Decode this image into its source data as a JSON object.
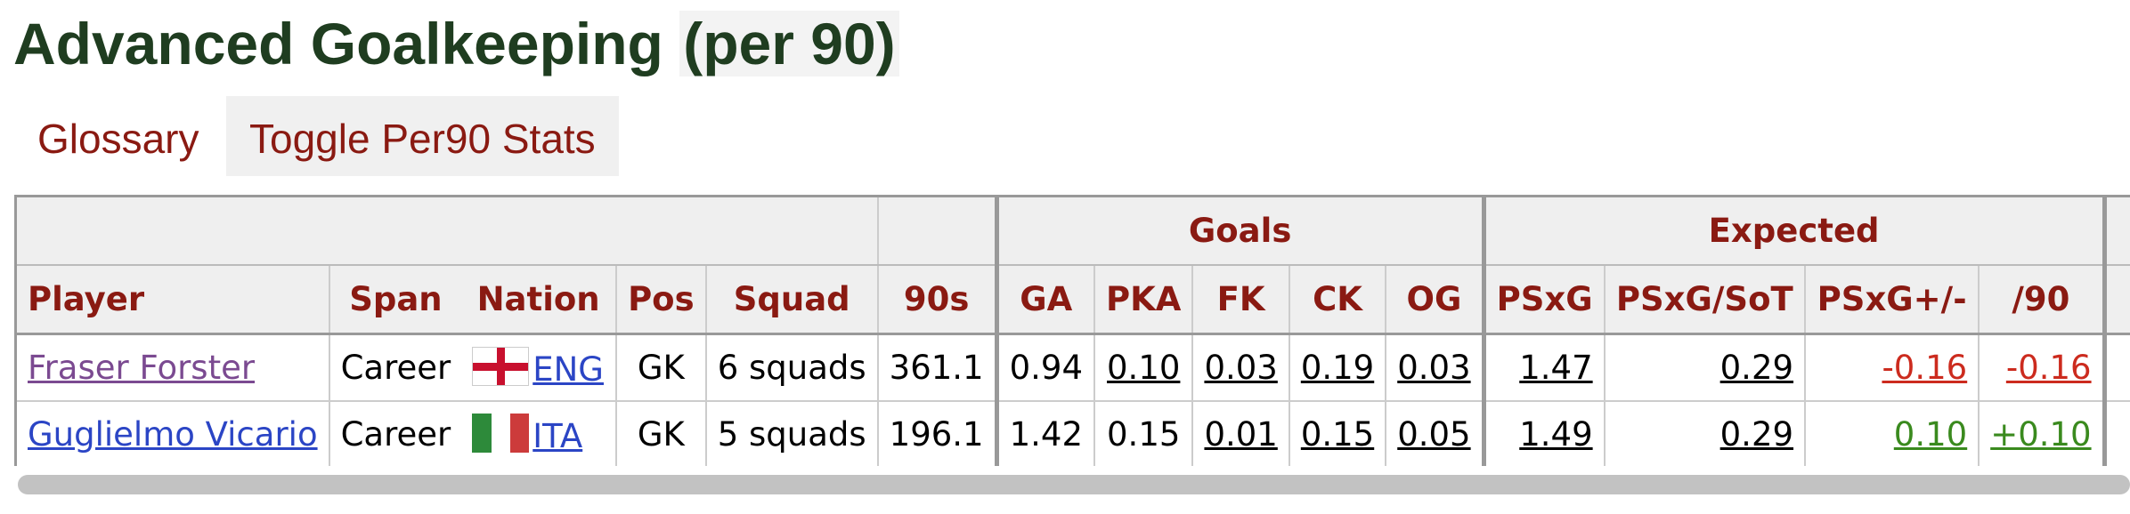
{
  "title": {
    "main": "Advanced Goalkeeping",
    "suffix": "(per 90)"
  },
  "tabs": {
    "glossary": "Glossary",
    "toggle": "Toggle Per90 Stats"
  },
  "table": {
    "groups": {
      "goals": "Goals",
      "expected": "Expected"
    },
    "columns": {
      "player": "Player",
      "span": "Span",
      "nation": "Nation",
      "pos": "Pos",
      "squad": "Squad",
      "nineties": "90s",
      "ga": "GA",
      "pka": "PKA",
      "fk": "FK",
      "ck": "CK",
      "og": "OG",
      "psxg": "PSxG",
      "psxg_sot": "PSxG/SoT",
      "psxg_pm": "PSxG+/-",
      "per90": "/90"
    },
    "rows": [
      {
        "player": "Fraser Forster",
        "span": "Career",
        "nation": "ENG",
        "flag": "england-flag",
        "pos": "GK",
        "squad": "6 squads",
        "nineties": "361.1",
        "ga": "0.94",
        "pka": "0.10",
        "fk": "0.03",
        "ck": "0.19",
        "og": "0.03",
        "psxg": "1.47",
        "psxg_sot": "0.29",
        "psxg_pm": "-0.16",
        "per90": "-0.16"
      },
      {
        "player": "Guglielmo Vicario",
        "span": "Career",
        "nation": "ITA",
        "flag": "italy-flag",
        "pos": "GK",
        "squad": "5 squads",
        "nineties": "196.1",
        "ga": "1.42",
        "pka": "0.15",
        "fk": "0.01",
        "ck": "0.15",
        "og": "0.05",
        "psxg": "1.49",
        "psxg_sot": "0.29",
        "psxg_pm": "0.10",
        "per90": "+0.10"
      }
    ]
  },
  "colors": {
    "header_text": "#8a1a12",
    "title": "#1f3d20",
    "negative": "#cc2b1e",
    "positive": "#3a8a1e",
    "link": "#2b45c5",
    "visited": "#7b4a91"
  }
}
